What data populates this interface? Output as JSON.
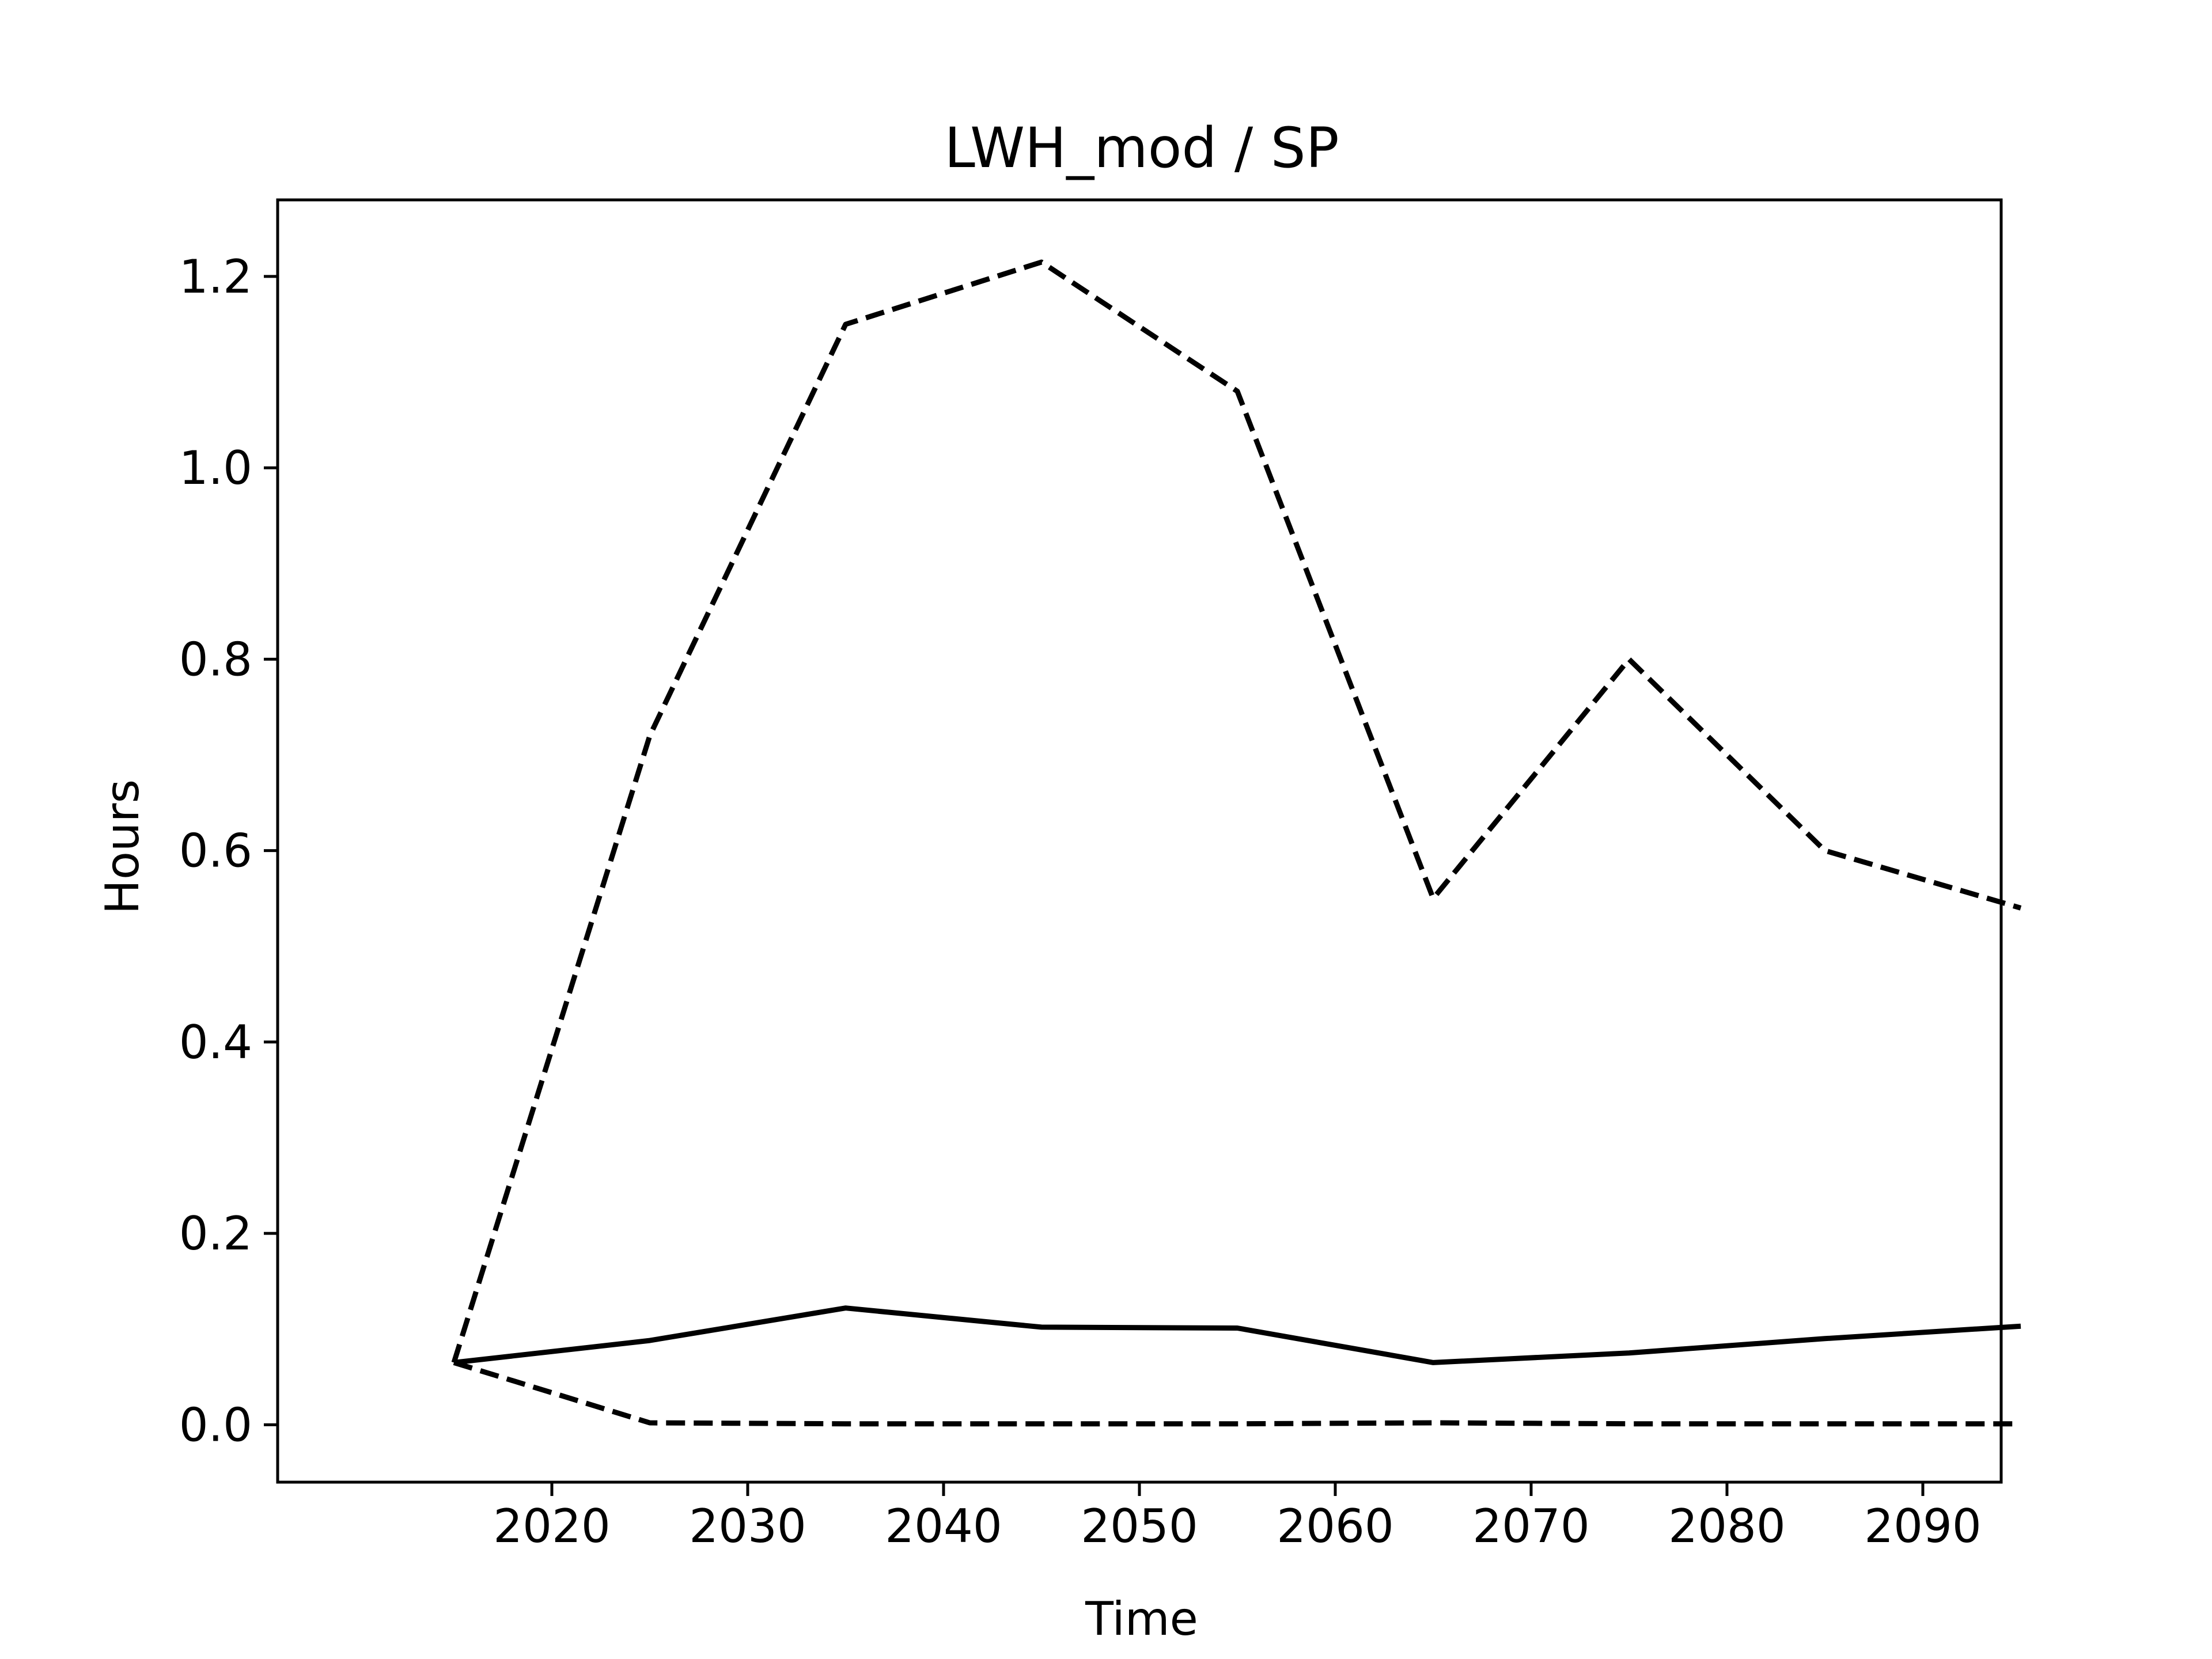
{
  "chart_data": {
    "type": "line",
    "title": "LWH_mod / SP",
    "xlabel": "Time",
    "ylabel": "Hours",
    "x": [
      2015,
      2025,
      2035,
      2045,
      2055,
      2065,
      2075,
      2085,
      2095
    ],
    "xlim": [
      2006,
      2094
    ],
    "ylim": [
      -0.06,
      1.28
    ],
    "xticks": [
      2020,
      2030,
      2040,
      2050,
      2060,
      2070,
      2080,
      2090
    ],
    "xtick_labels": [
      "2020",
      "2030",
      "2040",
      "2050",
      "2060",
      "2070",
      "2080",
      "2090"
    ],
    "yticks": [
      0.0,
      0.2,
      0.4,
      0.6,
      0.8,
      1.0,
      1.2
    ],
    "ytick_labels": [
      "0.0",
      "0.2",
      "0.4",
      "0.6",
      "0.8",
      "1.0",
      "1.2"
    ],
    "grid": false,
    "series": [
      {
        "style": "dashed",
        "color": "#000000",
        "values": [
          0.065,
          0.72,
          1.15,
          1.215,
          1.08,
          0.55,
          0.8,
          0.6,
          0.54
        ]
      },
      {
        "style": "solid",
        "color": "#000000",
        "values": [
          0.065,
          0.088,
          0.122,
          0.102,
          0.101,
          0.065,
          0.075,
          0.09,
          0.103
        ]
      },
      {
        "style": "dashed",
        "color": "#000000",
        "values": [
          0.065,
          0.002,
          0.001,
          0.001,
          0.001,
          0.002,
          0.001,
          0.001,
          0.001
        ]
      }
    ]
  }
}
